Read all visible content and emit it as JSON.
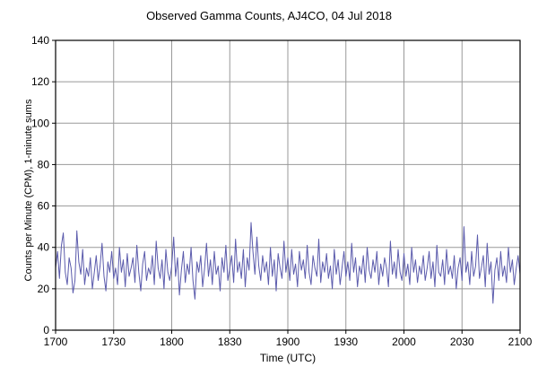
{
  "page": {
    "title": "Observed Gamma Counts, AJ4CO, 04 Jul 2018"
  },
  "chart_data": {
    "type": "line",
    "title": "Observed Gamma Counts, AJ4CO, 04 Jul 2018",
    "xlabel": "Time (UTC)",
    "ylabel": "Counts per Minute (CPM), 1-minute sums",
    "x_tick_labels": [
      "1700",
      "1730",
      "1800",
      "1830",
      "1900",
      "1930",
      "2000",
      "2030",
      "2100"
    ],
    "x_tick_positions_min": [
      0,
      30,
      60,
      90,
      120,
      150,
      180,
      210,
      240
    ],
    "x_range_min": [
      0,
      240
    ],
    "ylim": [
      0,
      140
    ],
    "y_ticks": [
      0,
      20,
      40,
      60,
      80,
      100,
      120,
      140
    ],
    "grid": true,
    "legend": "none",
    "line_color": "#5b5bac",
    "grid_color": "#999999",
    "axis_color": "#000000",
    "series": [
      {
        "name": "gamma-counts-1min",
        "sample_interval_minutes": 1,
        "values": [
          30,
          38,
          25,
          41,
          47,
          28,
          22,
          35,
          30,
          18,
          24,
          48,
          33,
          27,
          39,
          22,
          30,
          26,
          35,
          20,
          28,
          36,
          24,
          31,
          42,
          26,
          19,
          33,
          28,
          38,
          25,
          30,
          22,
          40,
          28,
          34,
          21,
          37,
          26,
          30,
          35,
          23,
          41,
          28,
          19,
          32,
          38,
          24,
          30,
          27,
          36,
          22,
          43,
          30,
          25,
          34,
          20,
          39,
          28,
          24,
          31,
          45,
          26,
          35,
          17,
          29,
          38,
          23,
          32,
          27,
          40,
          24,
          15,
          33,
          28,
          36,
          21,
          30,
          42,
          26,
          34,
          22,
          38,
          27,
          31,
          19,
          35,
          28,
          41,
          24,
          30,
          36,
          23,
          44,
          28,
          33,
          25,
          39,
          21,
          35,
          29,
          52,
          38,
          27,
          45,
          31,
          24,
          36,
          28,
          33,
          22,
          40,
          26,
          34,
          19,
          37,
          30,
          25,
          43,
          28,
          35,
          24,
          39,
          27,
          32,
          21,
          38,
          29,
          34,
          25,
          41,
          28,
          22,
          36,
          30,
          26,
          44,
          23,
          33,
          28,
          37,
          25,
          31,
          20,
          39,
          27,
          34,
          22,
          30,
          38,
          26,
          33,
          24,
          42,
          28,
          35,
          21,
          31,
          27,
          36,
          23,
          40,
          29,
          25,
          34,
          28,
          38,
          22,
          32,
          26,
          35,
          30,
          21,
          43,
          27,
          33,
          25,
          39,
          28,
          24,
          37,
          26,
          32,
          22,
          40,
          28,
          34,
          23,
          31,
          27,
          36,
          24,
          30,
          38,
          25,
          33,
          21,
          41,
          28,
          26,
          34,
          22,
          39,
          27,
          31,
          25,
          36,
          20,
          30,
          35,
          24,
          50,
          28,
          33,
          22,
          38,
          26,
          31,
          46,
          25,
          30,
          36,
          21,
          42,
          27,
          33,
          13,
          29,
          35,
          24,
          38,
          26,
          31,
          23,
          40,
          28,
          34,
          22,
          30,
          36,
          27
        ]
      }
    ]
  }
}
